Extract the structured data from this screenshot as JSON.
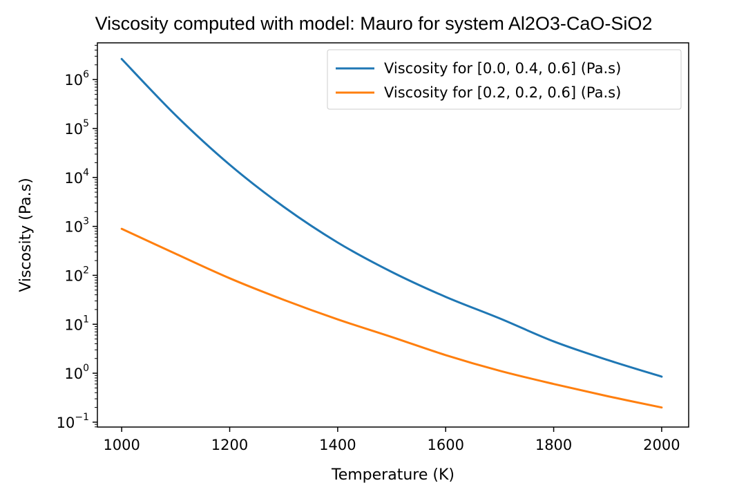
{
  "chart_data": {
    "type": "line",
    "title": "Viscosity computed with model: Mauro for system Al2O3-CaO-SiO2",
    "xlabel": "Temperature (K)",
    "ylabel": "Viscosity (Pa.s)",
    "xlim": [
      955,
      2050
    ],
    "ylim_log10": [
      -1.1,
      6.75
    ],
    "yscale": "log",
    "x_ticks": [
      1000,
      1200,
      1400,
      1600,
      1800,
      2000
    ],
    "y_tick_exponents": [
      -1,
      0,
      1,
      2,
      3,
      4,
      5,
      6
    ],
    "y_tick_base": "10",
    "grid": false,
    "legend_position": "top-right",
    "series": [
      {
        "name": "Viscosity for [0.0, 0.4, 0.6] (Pa.s)",
        "color": "#1f77b4",
        "x": [
          1000,
          1100,
          1200,
          1300,
          1400,
          1500,
          1600,
          1700,
          1800,
          1900,
          2000
        ],
        "y_log10": [
          6.42,
          5.27,
          4.26,
          3.4,
          2.67,
          2.07,
          1.56,
          1.12,
          0.65,
          0.27,
          -0.07
        ]
      },
      {
        "name": "Viscosity for [0.2, 0.2, 0.6] (Pa.s)",
        "color": "#ff7f0e",
        "x": [
          1000,
          1100,
          1200,
          1300,
          1400,
          1500,
          1600,
          1700,
          1800,
          1900,
          2000
        ],
        "y_log10": [
          2.95,
          2.44,
          1.94,
          1.5,
          1.1,
          0.74,
          0.37,
          0.05,
          -0.22,
          -0.47,
          -0.7
        ]
      }
    ]
  }
}
